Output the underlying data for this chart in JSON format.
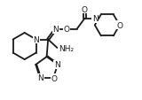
{
  "bg_color": "#ffffff",
  "line_color": "#1a1a1a",
  "line_width": 1.3,
  "font_size": 6.5,
  "fig_width": 1.6,
  "fig_height": 1.14,
  "dpi": 100,
  "xlim": [
    0,
    10
  ],
  "ylim": [
    0,
    7.1
  ]
}
